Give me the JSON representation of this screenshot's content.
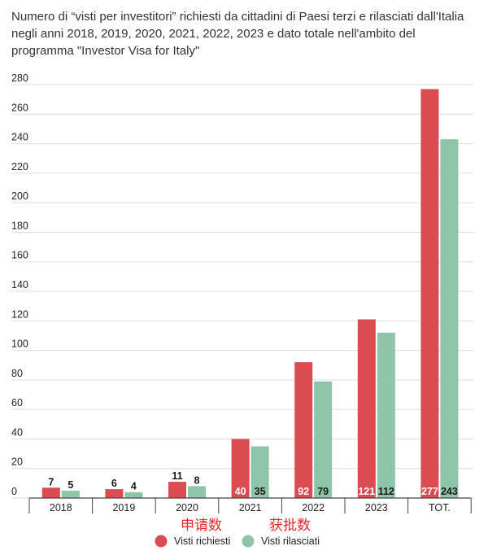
{
  "chart_data": {
    "type": "bar",
    "title": "Numero di “visti per investitori” richiesti da cittadini di Paesi terzi e rilasciati dall'Italia negli anni 2018, 2019, 2020, 2021, 2022, 2023 e dato totale nell'ambito del programma \"Investor Visa for Italy\"",
    "categories": [
      "2018",
      "2019",
      "2020",
      "2021",
      "2022",
      "2023",
      "TOT."
    ],
    "series": [
      {
        "name": "Visti richiesti",
        "color": "#db4b52",
        "values": [
          7,
          6,
          11,
          40,
          92,
          121,
          277
        ]
      },
      {
        "name": "Visti rilasciati",
        "color": "#8ec4a7",
        "values": [
          5,
          4,
          8,
          35,
          79,
          112,
          243
        ]
      }
    ],
    "ylim": [
      0,
      280
    ],
    "yticks": [
      0,
      20,
      40,
      60,
      80,
      100,
      120,
      140,
      160,
      180,
      200,
      220,
      240,
      260,
      280
    ],
    "grid": true,
    "legend": "bottom-center",
    "annotations": [
      {
        "text": "申请数",
        "series": 0
      },
      {
        "text": "获批数",
        "series": 1
      }
    ]
  }
}
